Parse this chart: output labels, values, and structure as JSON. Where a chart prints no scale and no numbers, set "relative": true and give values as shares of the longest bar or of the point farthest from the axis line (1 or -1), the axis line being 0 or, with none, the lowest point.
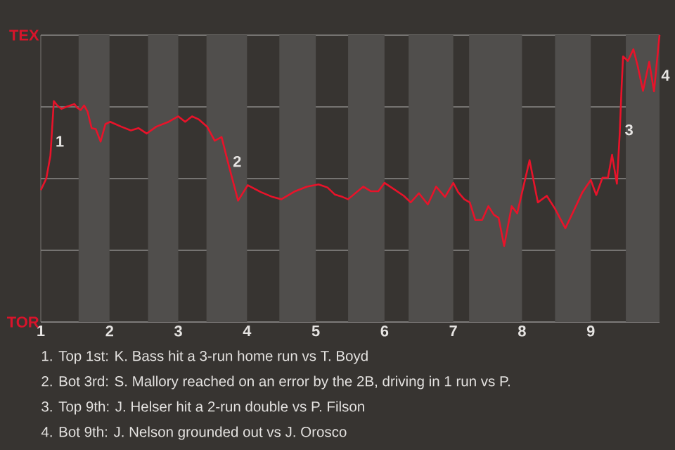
{
  "chart_data": {
    "type": "line",
    "relative": true,
    "grid": "y",
    "marker": "none",
    "line_style": "solid",
    "xlim": [
      1,
      10
    ],
    "xticks": [
      1,
      2,
      3,
      4,
      5,
      6,
      7,
      8,
      9
    ],
    "bands": [
      {
        "axis": "x",
        "from": 1.55,
        "to": 2,
        "color": "#504e4c"
      },
      {
        "axis": "x",
        "from": 2.56,
        "to": 3,
        "color": "#504e4c"
      },
      {
        "axis": "x",
        "from": 3.41,
        "to": 4,
        "color": "#504e4c"
      },
      {
        "axis": "x",
        "from": 4.47,
        "to": 5,
        "color": "#504e4c"
      },
      {
        "axis": "x",
        "from": 5.47,
        "to": 6,
        "color": "#504e4c"
      },
      {
        "axis": "x",
        "from": 6.35,
        "to": 7,
        "color": "#504e4c"
      },
      {
        "axis": "x",
        "from": 7.23,
        "to": 8,
        "color": "#504e4c"
      },
      {
        "axis": "x",
        "from": 8.48,
        "to": 9,
        "color": "#504e4c"
      },
      {
        "axis": "x",
        "from": 9.51,
        "to": 10,
        "color": "#504e4c"
      }
    ],
    "series": [
      {
        "color": "#e8132a",
        "x": [
          1,
          1.08,
          1.14,
          1.19,
          1.24,
          1.3,
          1.37,
          1.43,
          1.49,
          1.53,
          1.58,
          1.63,
          1.68,
          1.74,
          1.8,
          1.87,
          1.94,
          2.01,
          2.17,
          2.31,
          2.42,
          2.54,
          2.68,
          2.86,
          3,
          3.1,
          3.2,
          3.3,
          3.42,
          3.53,
          3.63,
          3.72,
          3.87,
          4.01,
          4.2,
          4.37,
          4.5,
          4.7,
          4.87,
          5.04,
          5.17,
          5.28,
          5.39,
          5.47,
          5.69,
          5.8,
          5.91,
          6,
          6.15,
          6.28,
          6.38,
          6.5,
          6.63,
          6.75,
          6.88,
          7,
          7.07,
          7.16,
          7.24,
          7.32,
          7.42,
          7.51,
          7.59,
          7.66,
          7.74,
          7.85,
          7.93,
          8.11,
          8.23,
          8.36,
          8.48,
          8.63,
          8.75,
          8.88,
          9,
          9.08,
          9.17,
          9.25,
          9.31,
          9.38,
          9.42,
          9.45,
          9.47,
          9.54,
          9.62,
          9.68,
          9.76,
          9.85,
          9.92,
          10
        ],
        "values": [
          0.46,
          0.5,
          0.58,
          0.77,
          0.755,
          0.743,
          0.75,
          0.755,
          0.76,
          0.747,
          0.739,
          0.755,
          0.734,
          0.676,
          0.673,
          0.629,
          0.69,
          0.698,
          0.681,
          0.668,
          0.676,
          0.657,
          0.681,
          0.698,
          0.717,
          0.698,
          0.717,
          0.706,
          0.681,
          0.632,
          0.645,
          0.559,
          0.423,
          0.477,
          0.453,
          0.436,
          0.428,
          0.456,
          0.472,
          0.48,
          0.469,
          0.444,
          0.436,
          0.428,
          0.472,
          0.456,
          0.456,
          0.485,
          0.461,
          0.44,
          0.417,
          0.449,
          0.41,
          0.472,
          0.436,
          0.485,
          0.453,
          0.428,
          0.417,
          0.356,
          0.356,
          0.404,
          0.374,
          0.363,
          0.265,
          0.404,
          0.379,
          0.564,
          0.417,
          0.44,
          0.395,
          0.327,
          0.387,
          0.453,
          0.495,
          0.443,
          0.503,
          0.503,
          0.583,
          0.482,
          0.652,
          0.828,
          0.926,
          0.91,
          0.951,
          0.895,
          0.806,
          0.907,
          0.804,
          1.0
        ]
      }
    ],
    "annotations": [
      "TEX",
      "TOR",
      {
        "text": "1",
        "x": 1.19,
        "y": 0.63
      },
      {
        "text": "2",
        "x": 3.77,
        "y": 0.56
      },
      {
        "text": "3",
        "x": 9.47,
        "y": 0.67
      },
      {
        "text": "4",
        "x": 10,
        "y": 0.86
      },
      "1. Top 1st: K. Bass hit a 3-run home run vs T. Boyd",
      "2. Bot 3rd: S. Mallory reached on an error by the 2B, driving in 1 run vs P.",
      "3. Top 9th: J. Helser hit a 2-run double vs P. Filson",
      "4. Bot 9th: J. Nelson grounded out vs J. Orosco"
    ]
  }
}
